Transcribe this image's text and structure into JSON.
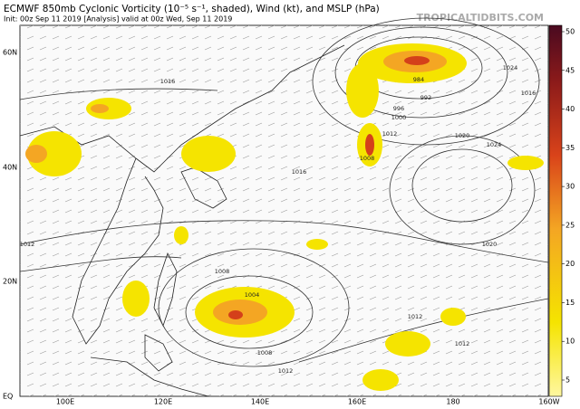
{
  "header": {
    "title": "ECMWF 850mb Cyclonic Vorticity (10⁻⁵ s⁻¹, shaded), Wind (kt), and MSLP (hPa)",
    "subtitle": "Init: 00z Sep 11 2019   [Analysis]   valid at 00z Wed, Sep 11 2019",
    "watermark": "TROPICALTIDBITS.COM"
  },
  "colorbar": {
    "ticks": [
      5,
      10,
      15,
      20,
      25,
      30,
      35,
      40,
      45,
      50
    ]
  },
  "axes": {
    "lat_labels": [
      "60N",
      "40N",
      "20N",
      "EQ"
    ],
    "lon_labels": [
      "100E",
      "120E",
      "140E",
      "160E",
      "180",
      "160W"
    ]
  },
  "isobar_labels": [
    "1012",
    "1008",
    "1004",
    "1008",
    "1012",
    "1016",
    "1016",
    "1020",
    "1024",
    "1020",
    "984",
    "992",
    "996",
    "1000",
    "1008",
    "1012",
    "1016",
    "1024",
    "1012",
    "1012"
  ]
}
